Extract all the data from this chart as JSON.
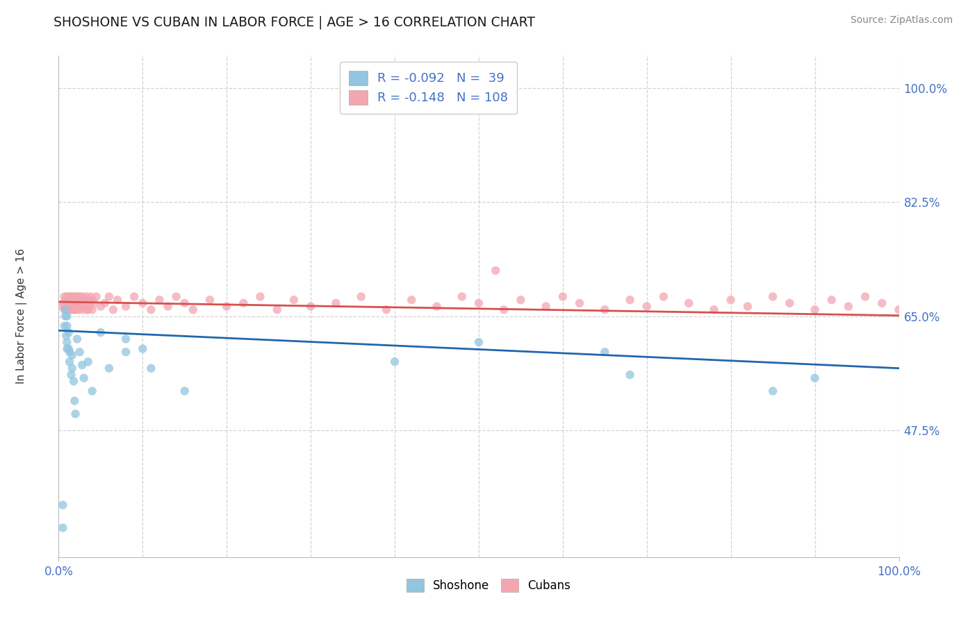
{
  "title": "SHOSHONE VS CUBAN IN LABOR FORCE | AGE > 16 CORRELATION CHART",
  "source": "Source: ZipAtlas.com",
  "ylabel": "In Labor Force | Age > 16",
  "xlim": [
    0.0,
    1.0
  ],
  "ylim": [
    0.28,
    1.05
  ],
  "yticks": [
    0.475,
    0.65,
    0.825,
    1.0
  ],
  "ytick_labels": [
    "47.5%",
    "65.0%",
    "82.5%",
    "100.0%"
  ],
  "legend_r_shoshone": "-0.092",
  "legend_n_shoshone": "39",
  "legend_r_cuban": "-0.148",
  "legend_n_cuban": "108",
  "shoshone_color": "#92c5de",
  "cuban_color": "#f4a6b0",
  "trend_shoshone_color": "#2166ac",
  "trend_cuban_color": "#d6504e",
  "background_color": "#ffffff",
  "grid_color": "#c8c8c8",
  "shoshone_x": [
    0.005,
    0.005,
    0.007,
    0.008,
    0.008,
    0.009,
    0.01,
    0.01,
    0.01,
    0.01,
    0.012,
    0.012,
    0.013,
    0.013,
    0.015,
    0.016,
    0.016,
    0.018,
    0.019,
    0.02,
    0.022,
    0.025,
    0.028,
    0.03,
    0.035,
    0.04,
    0.05,
    0.06,
    0.08,
    0.08,
    0.1,
    0.11,
    0.15,
    0.4,
    0.5,
    0.65,
    0.68,
    0.85,
    0.9
  ],
  "shoshone_y": [
    0.325,
    0.36,
    0.635,
    0.65,
    0.66,
    0.62,
    0.61,
    0.635,
    0.65,
    0.6,
    0.6,
    0.625,
    0.595,
    0.58,
    0.56,
    0.57,
    0.59,
    0.55,
    0.52,
    0.5,
    0.615,
    0.595,
    0.575,
    0.555,
    0.58,
    0.535,
    0.625,
    0.57,
    0.615,
    0.595,
    0.6,
    0.57,
    0.535,
    0.58,
    0.61,
    0.595,
    0.56,
    0.535,
    0.555
  ],
  "cuban_x": [
    0.005,
    0.006,
    0.007,
    0.007,
    0.008,
    0.009,
    0.009,
    0.01,
    0.01,
    0.011,
    0.011,
    0.012,
    0.012,
    0.013,
    0.013,
    0.014,
    0.014,
    0.015,
    0.015,
    0.015,
    0.016,
    0.016,
    0.017,
    0.017,
    0.018,
    0.018,
    0.019,
    0.019,
    0.02,
    0.02,
    0.02,
    0.02,
    0.021,
    0.022,
    0.022,
    0.023,
    0.024,
    0.025,
    0.025,
    0.026,
    0.027,
    0.028,
    0.029,
    0.03,
    0.03,
    0.031,
    0.032,
    0.033,
    0.034,
    0.035,
    0.035,
    0.036,
    0.037,
    0.038,
    0.04,
    0.04,
    0.042,
    0.045,
    0.05,
    0.055,
    0.06,
    0.065,
    0.07,
    0.08,
    0.09,
    0.1,
    0.11,
    0.12,
    0.13,
    0.14,
    0.15,
    0.16,
    0.18,
    0.2,
    0.22,
    0.24,
    0.26,
    0.28,
    0.3,
    0.33,
    0.36,
    0.39,
    0.42,
    0.45,
    0.48,
    0.5,
    0.53,
    0.55,
    0.58,
    0.6,
    0.62,
    0.65,
    0.68,
    0.7,
    0.72,
    0.75,
    0.78,
    0.8,
    0.82,
    0.85,
    0.87,
    0.9,
    0.92,
    0.94,
    0.96,
    0.98,
    1.0,
    0.52
  ],
  "cuban_y": [
    0.665,
    0.67,
    0.66,
    0.68,
    0.675,
    0.66,
    0.67,
    0.665,
    0.68,
    0.67,
    0.66,
    0.675,
    0.68,
    0.66,
    0.67,
    0.665,
    0.68,
    0.66,
    0.67,
    0.675,
    0.68,
    0.66,
    0.67,
    0.665,
    0.68,
    0.66,
    0.67,
    0.675,
    0.665,
    0.68,
    0.66,
    0.67,
    0.675,
    0.66,
    0.68,
    0.665,
    0.67,
    0.68,
    0.66,
    0.67,
    0.665,
    0.68,
    0.67,
    0.66,
    0.675,
    0.665,
    0.67,
    0.68,
    0.66,
    0.675,
    0.66,
    0.67,
    0.665,
    0.68,
    0.66,
    0.675,
    0.67,
    0.68,
    0.665,
    0.67,
    0.68,
    0.66,
    0.675,
    0.665,
    0.68,
    0.67,
    0.66,
    0.675,
    0.665,
    0.68,
    0.67,
    0.66,
    0.675,
    0.665,
    0.67,
    0.68,
    0.66,
    0.675,
    0.665,
    0.67,
    0.68,
    0.66,
    0.675,
    0.665,
    0.68,
    0.67,
    0.66,
    0.675,
    0.665,
    0.68,
    0.67,
    0.66,
    0.675,
    0.665,
    0.68,
    0.67,
    0.66,
    0.675,
    0.665,
    0.68,
    0.67,
    0.66,
    0.675,
    0.665,
    0.68,
    0.67,
    0.66,
    0.72
  ],
  "trend_shoshone_x0": 0.0,
  "trend_shoshone_y0": 0.628,
  "trend_shoshone_x1": 1.0,
  "trend_shoshone_y1": 0.57,
  "trend_cuban_x0": 0.0,
  "trend_cuban_y0": 0.672,
  "trend_cuban_x1": 1.0,
  "trend_cuban_y1": 0.651
}
